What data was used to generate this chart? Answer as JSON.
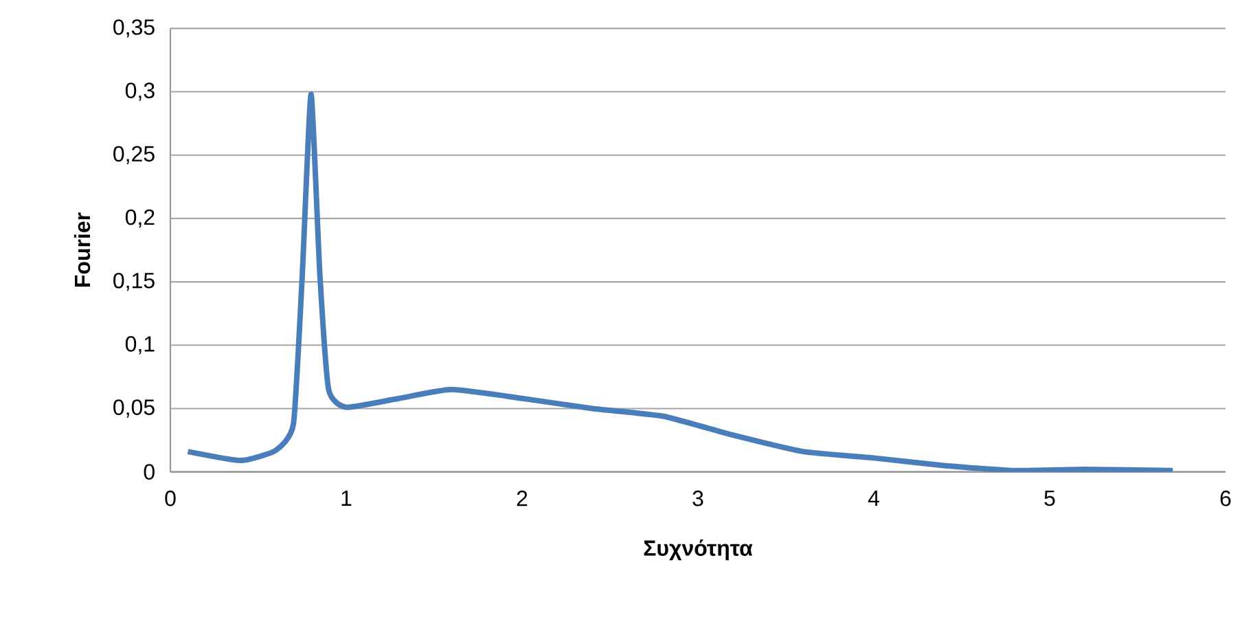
{
  "chart_data": {
    "type": "line",
    "xlabel": "Συχνότητα",
    "ylabel": "Fourier",
    "x": [
      0.1,
      0.4,
      0.6,
      0.7,
      0.75,
      0.8,
      0.85,
      0.9,
      1.0,
      1.3,
      1.6,
      2.0,
      2.4,
      2.8,
      3.2,
      3.6,
      4.0,
      4.4,
      4.8,
      5.2,
      5.7
    ],
    "series": [
      {
        "color": "#4a7ebb",
        "values": [
          0.016,
          0.009,
          0.017,
          0.038,
          0.155,
          0.298,
          0.156,
          0.065,
          0.051,
          0.058,
          0.065,
          0.058,
          0.05,
          0.044,
          0.029,
          0.016,
          0.011,
          0.005,
          0.001,
          0.002,
          0.001
        ]
      }
    ],
    "xlim": [
      0,
      6
    ],
    "xticks": [
      0,
      1,
      2,
      3,
      4,
      5,
      6
    ],
    "ylim": [
      0,
      0.35
    ],
    "yticks": [
      {
        "value": 0,
        "label": "0"
      },
      {
        "value": 0.05,
        "label": "0,05"
      },
      {
        "value": 0.1,
        "label": "0,1"
      },
      {
        "value": 0.15,
        "label": "0,15"
      },
      {
        "value": 0.2,
        "label": "0,2"
      },
      {
        "value": 0.25,
        "label": "0,25"
      },
      {
        "value": 0.3,
        "label": "0,3"
      },
      {
        "value": 0.35,
        "label": "0,35"
      }
    ],
    "grid": "y",
    "marker": "none",
    "line_style": "solid"
  }
}
